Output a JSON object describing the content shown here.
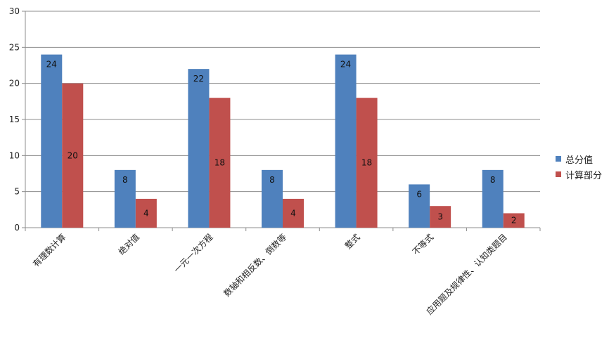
{
  "chart_data": {
    "type": "bar",
    "title": "",
    "xlabel": "",
    "ylabel": "",
    "ylim": [
      0,
      30
    ],
    "yticks": [
      0,
      5,
      10,
      15,
      20,
      25,
      30
    ],
    "grid": true,
    "legend_position": "right",
    "categories": [
      "有理数计算",
      "绝对值",
      "一元一次方程",
      "数轴和相反数、倒数等",
      "整式",
      "不等式",
      "应用题及规律性、认知类题目"
    ],
    "series": [
      {
        "name": "总分值",
        "color": "#4f81bd",
        "values": [
          24,
          8,
          22,
          8,
          24,
          6,
          8
        ]
      },
      {
        "name": "计算部分",
        "color": "#c0504d",
        "values": [
          20,
          4,
          18,
          4,
          18,
          3,
          2
        ]
      }
    ]
  }
}
